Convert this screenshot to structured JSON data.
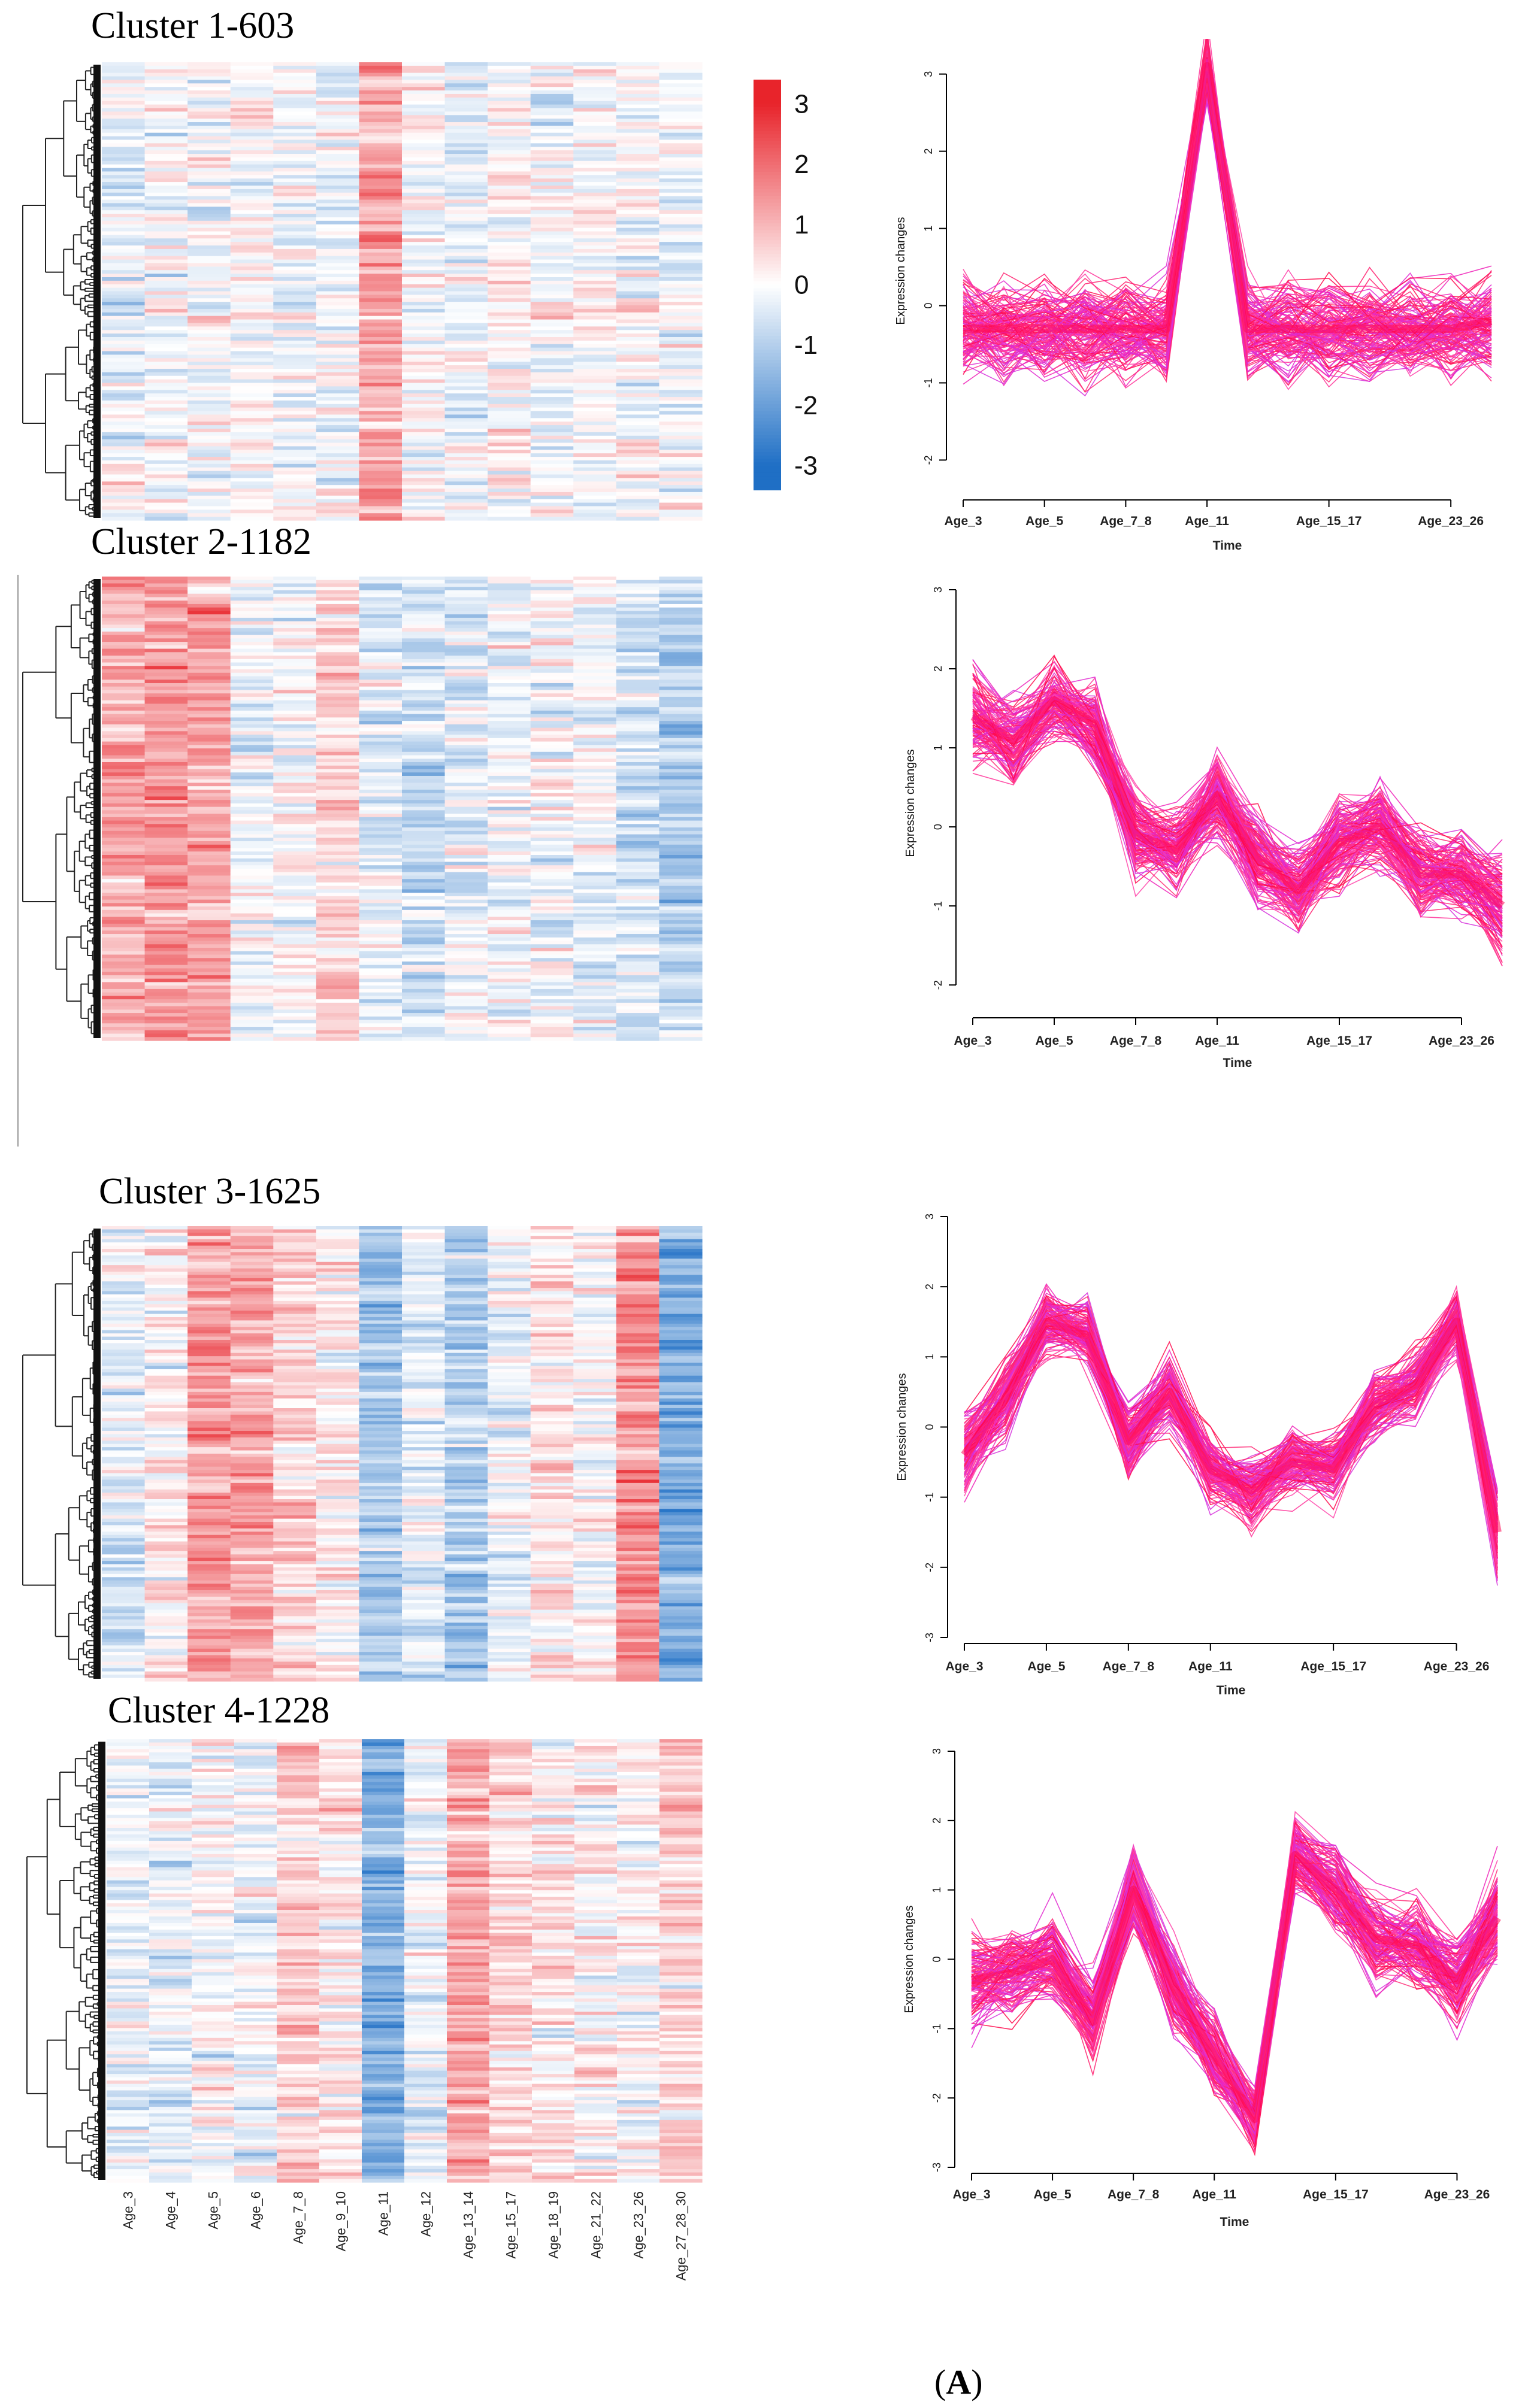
{
  "figure": {
    "panel_label_open": "(",
    "panel_label_letter": "A",
    "panel_label_close": ")"
  },
  "chart_data": [
    {
      "type": "heatmap",
      "title": "Cluster 1-603",
      "columns": [
        "Age_3",
        "Age_4",
        "Age_5",
        "Age_6",
        "Age_7_8",
        "Age_9_10",
        "Age_11",
        "Age_12",
        "Age_13_14",
        "Age_15_17",
        "Age_18_19",
        "Age_21_22",
        "Age_23_26",
        "Age_27_28_30"
      ],
      "column_means": [
        -0.3,
        0.0,
        -0.1,
        0.1,
        -0.2,
        -0.2,
        1.3,
        0.1,
        -0.2,
        0.1,
        -0.1,
        -0.1,
        -0.1,
        -0.2
      ],
      "colorscale": {
        "min": -3,
        "max": 3,
        "low": "#1f6fc5",
        "mid": "#ffffff",
        "high": "#e8242b"
      }
    },
    {
      "type": "heatmap",
      "title": "Cluster 2-1182",
      "columns": [
        "Age_3",
        "Age_4",
        "Age_5",
        "Age_6",
        "Age_7_8",
        "Age_9_10",
        "Age_11",
        "Age_12",
        "Age_13_14",
        "Age_15_17",
        "Age_18_19",
        "Age_21_22",
        "Age_23_26",
        "Age_27_28_30"
      ],
      "column_means": [
        1.2,
        1.4,
        1.3,
        -0.2,
        0.0,
        0.6,
        -0.4,
        -0.7,
        -0.3,
        -0.2,
        -0.1,
        -0.2,
        -0.5,
        -1.0
      ],
      "colorscale": {
        "min": -3,
        "max": 3,
        "low": "#1f6fc5",
        "mid": "#ffffff",
        "high": "#e8242b"
      }
    },
    {
      "type": "heatmap",
      "title": "Cluster 3-1625",
      "columns": [
        "Age_3",
        "Age_4",
        "Age_5",
        "Age_6",
        "Age_7_8",
        "Age_9_10",
        "Age_11",
        "Age_12",
        "Age_13_14",
        "Age_15_17",
        "Age_18_19",
        "Age_21_22",
        "Age_23_26",
        "Age_27_28_30"
      ],
      "column_means": [
        -0.3,
        0.2,
        1.3,
        1.2,
        0.6,
        0.3,
        -1.2,
        -0.4,
        -1.0,
        -0.2,
        0.3,
        0.0,
        1.5,
        -1.6
      ],
      "colorscale": {
        "min": -3,
        "max": 3,
        "low": "#1f6fc5",
        "mid": "#ffffff",
        "high": "#e8242b"
      }
    },
    {
      "type": "heatmap",
      "title": "Cluster 4-1228",
      "columns": [
        "Age_3",
        "Age_4",
        "Age_5",
        "Age_6",
        "Age_7_8",
        "Age_9_10",
        "Age_11",
        "Age_12",
        "Age_13_14",
        "Age_15_17",
        "Age_18_19",
        "Age_21_22",
        "Age_23_26",
        "Age_27_28_30"
      ],
      "column_means": [
        -0.3,
        -0.3,
        0.0,
        -0.2,
        0.6,
        0.3,
        -1.6,
        -0.2,
        1.2,
        0.5,
        0.3,
        0.1,
        0.0,
        0.6
      ],
      "colorscale": {
        "min": -3,
        "max": 3,
        "low": "#1f6fc5",
        "mid": "#ffffff",
        "high": "#e8242b"
      }
    },
    {
      "type": "colorbar",
      "ticks": [
        3,
        2,
        1,
        0,
        -1,
        -2,
        -3
      ],
      "tick_labels": [
        "3",
        "2",
        "1",
        "0",
        "-1",
        "-2",
        "-3"
      ],
      "range": [
        -3.4,
        3.4
      ]
    },
    {
      "type": "line",
      "panel": "Cluster 1-603",
      "xlabel": "Time",
      "ylabel": "Expression changes",
      "x_tick_labels": [
        "Age_3",
        "Age_5",
        "Age_7_8",
        "Age_11",
        "Age_15_17",
        "Age_23_26"
      ],
      "y_ticks": [
        -2,
        -1,
        0,
        1,
        2,
        3
      ],
      "y_tick_labels": [
        "-2",
        "-1",
        "0",
        "1",
        "2",
        "3"
      ],
      "ylim": [
        -2.4,
        3.3
      ],
      "n_timepoints": 14,
      "mean_profile": [
        -0.3,
        -0.3,
        -0.3,
        -0.3,
        -0.3,
        -0.3,
        3.1,
        -0.3,
        -0.3,
        -0.3,
        -0.3,
        -0.3,
        -0.3,
        -0.2
      ],
      "spread": [
        0.55,
        0.5,
        0.5,
        0.5,
        0.5,
        0.5,
        0.35,
        0.5,
        0.5,
        0.5,
        0.5,
        0.5,
        0.5,
        0.55
      ]
    },
    {
      "type": "line",
      "panel": "Cluster 2-1182",
      "xlabel": "Time",
      "ylabel": "Expression changes",
      "x_tick_labels": [
        "Age_3",
        "Age_5",
        "Age_7_8",
        "Age_11",
        "Age_15_17",
        "Age_23_26"
      ],
      "y_ticks": [
        -2,
        -1,
        0,
        1,
        2,
        3
      ],
      "y_tick_labels": [
        "-2",
        "-1",
        "0",
        "1",
        "2",
        "3"
      ],
      "ylim": [
        -2.4,
        3.0
      ],
      "n_timepoints": 14,
      "mean_profile": [
        1.4,
        1.1,
        1.6,
        1.3,
        -0.1,
        -0.3,
        0.4,
        -0.4,
        -0.8,
        -0.2,
        0.0,
        -0.6,
        -0.6,
        -1.0
      ],
      "spread": [
        0.5,
        0.45,
        0.45,
        0.45,
        0.45,
        0.45,
        0.45,
        0.45,
        0.45,
        0.45,
        0.45,
        0.45,
        0.45,
        0.55
      ]
    },
    {
      "type": "line",
      "panel": "Cluster 3-1625",
      "xlabel": "Time",
      "ylabel": "Expression changes",
      "x_tick_labels": [
        "Age_3",
        "Age_5",
        "Age_7_8",
        "Age_11",
        "Age_15_17",
        "Age_23_26"
      ],
      "y_ticks": [
        -3,
        -2,
        -1,
        0,
        1,
        2,
        3
      ],
      "y_tick_labels": [
        "-3",
        "-2",
        "-1",
        "0",
        "1",
        "2",
        "3"
      ],
      "ylim": [
        -3.0,
        3.0
      ],
      "n_timepoints": 14,
      "mean_profile": [
        -0.4,
        0.4,
        1.5,
        1.3,
        -0.2,
        0.5,
        -0.6,
        -0.9,
        -0.5,
        -0.6,
        0.3,
        0.6,
        1.5,
        -1.5
      ],
      "spread": [
        0.5,
        0.45,
        0.4,
        0.4,
        0.4,
        0.4,
        0.4,
        0.4,
        0.4,
        0.4,
        0.4,
        0.4,
        0.4,
        0.5
      ]
    },
    {
      "type": "line",
      "panel": "Cluster 4-1228",
      "xlabel": "Time",
      "ylabel": "Expression changes",
      "x_tick_labels": [
        "Age_3",
        "Age_5",
        "Age_7_8",
        "Age_11",
        "Age_15_17",
        "Age_23_26"
      ],
      "y_ticks": [
        -3,
        -2,
        -1,
        0,
        1,
        2,
        3
      ],
      "y_tick_labels": [
        "-3",
        "-2",
        "-1",
        "0",
        "1",
        "2",
        "3"
      ],
      "ylim": [
        -3.0,
        3.0
      ],
      "n_timepoints": 14,
      "mean_profile": [
        -0.3,
        -0.2,
        0.0,
        -0.9,
        1.0,
        -0.4,
        -1.4,
        -2.3,
        1.5,
        1.0,
        0.3,
        0.2,
        -0.3,
        0.6
      ],
      "spread": [
        0.55,
        0.5,
        0.5,
        0.5,
        0.5,
        0.5,
        0.45,
        0.35,
        0.45,
        0.5,
        0.5,
        0.5,
        0.5,
        0.55
      ]
    }
  ]
}
